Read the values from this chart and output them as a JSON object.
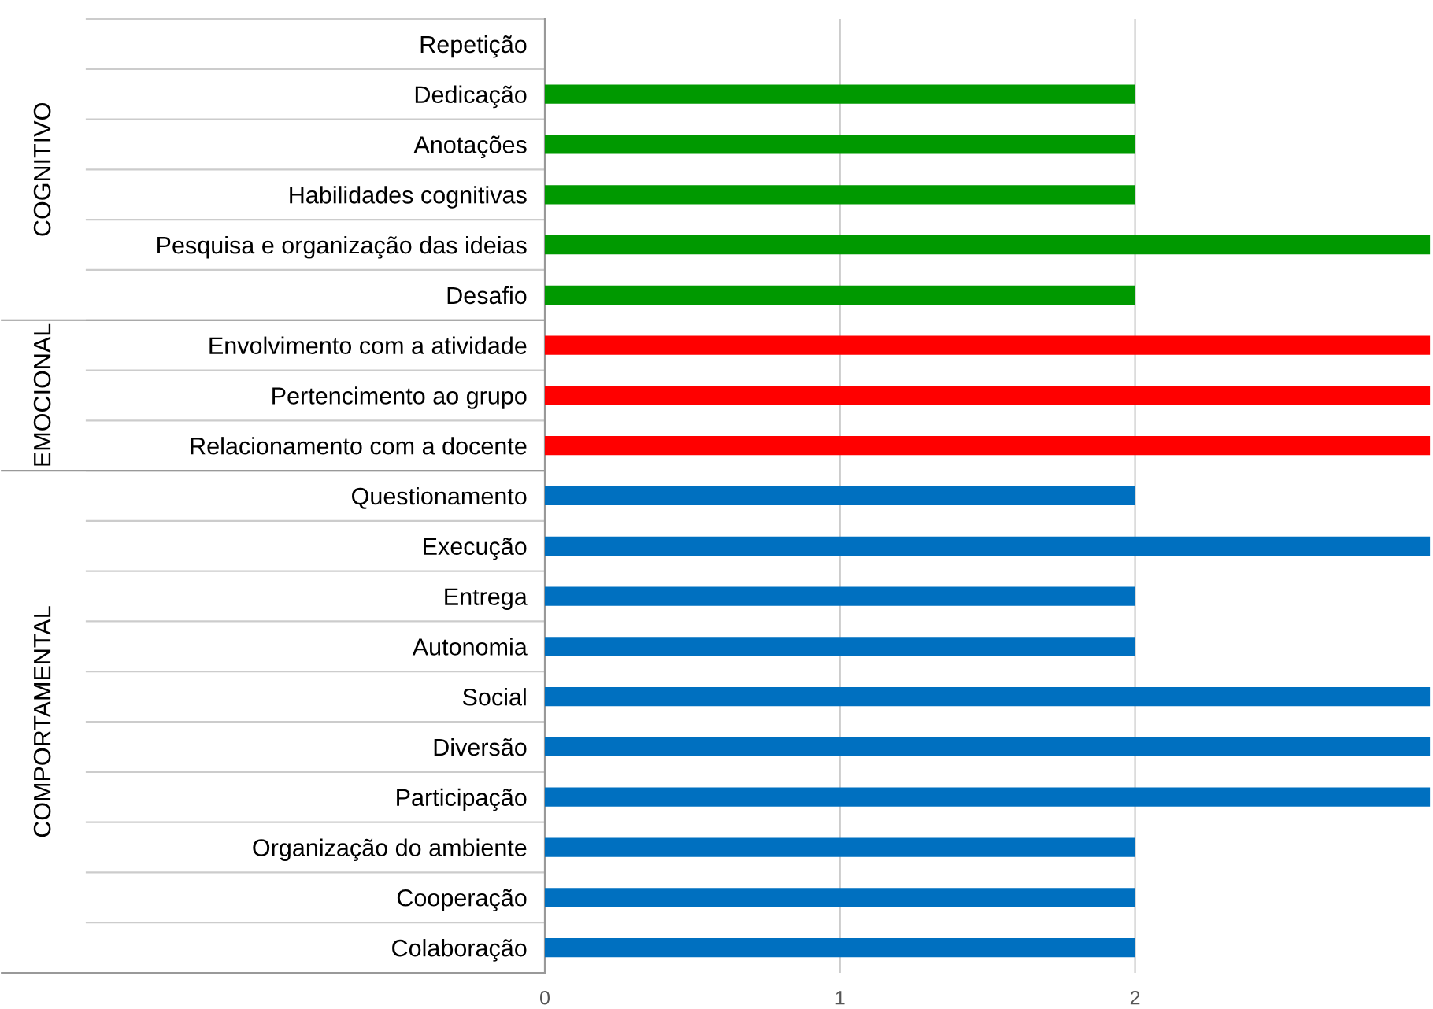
{
  "chart_data": {
    "type": "bar",
    "orientation": "horizontal",
    "categories": [
      "Repetição",
      "Dedicação",
      "Anotações",
      "Habilidades cognitivas",
      "Pesquisa e organização das ideias",
      "Desafio",
      "Envolvimento com a atividade",
      "Pertencimento ao grupo",
      "Relacionamento com a docente",
      "Questionamento",
      "Execução",
      "Entrega",
      "Autonomia",
      "Social",
      "Diversão",
      "Participação",
      "Organização do ambiente",
      "Cooperação",
      "Colaboração"
    ],
    "values": [
      0,
      2,
      2,
      2,
      3,
      2,
      3,
      3,
      3,
      2,
      3,
      2,
      2,
      3,
      3,
      3,
      2,
      2,
      2
    ],
    "colors": [
      "#009900",
      "#009900",
      "#009900",
      "#009900",
      "#009900",
      "#009900",
      "#ff0000",
      "#ff0000",
      "#ff0000",
      "#0070c0",
      "#0070c0",
      "#0070c0",
      "#0070c0",
      "#0070c0",
      "#0070c0",
      "#0070c0",
      "#0070c0",
      "#0070c0",
      "#0070c0"
    ],
    "xlim": [
      0,
      3
    ],
    "xticks": [
      0,
      1,
      2
    ],
    "grid": "x",
    "annotations": [
      "COGNITIVO",
      "EMOCIONAL",
      "COMPORTAMENTAL"
    ]
  }
}
